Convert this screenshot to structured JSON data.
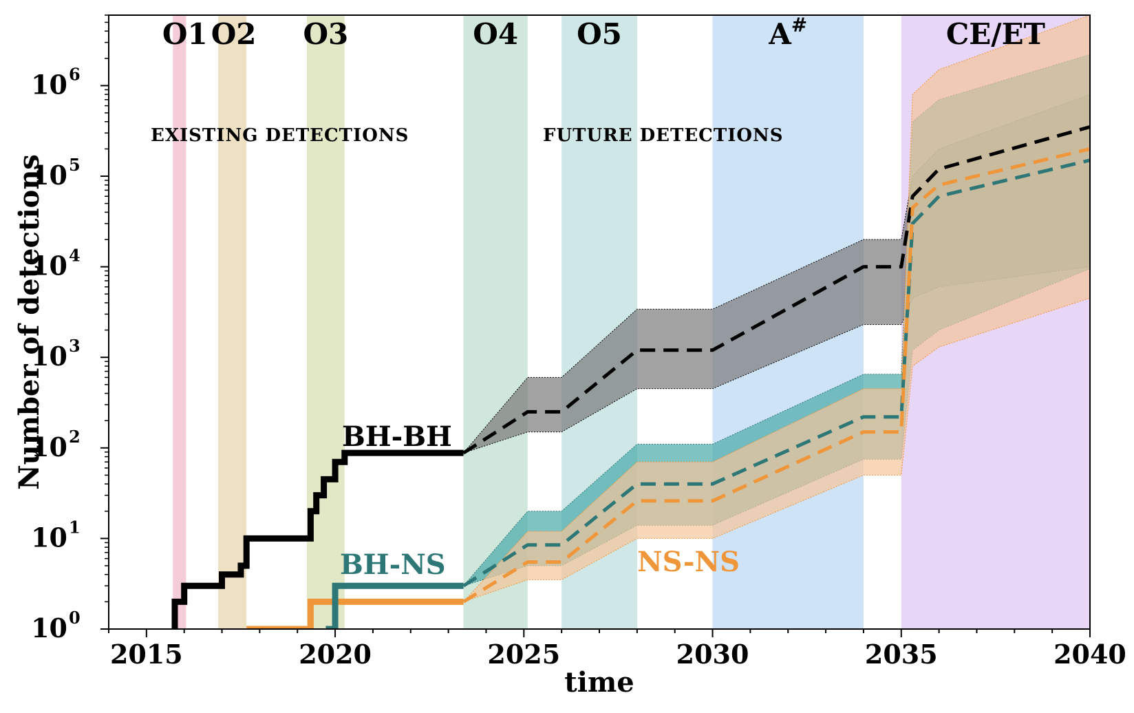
{
  "chart_data": {
    "type": "line",
    "title": "",
    "xlabel": "time",
    "ylabel": "Number of detections",
    "xlim": [
      2014,
      2040
    ],
    "ylim": [
      1,
      6000000
    ],
    "yscale": "log",
    "x_ticks": [
      2015,
      2020,
      2025,
      2030,
      2035,
      2040
    ],
    "x_tick_labels": [
      "2015",
      "2020",
      "2025",
      "2030",
      "2035",
      "2040"
    ],
    "y_ticks": [
      {
        "value": 1,
        "base": "10",
        "exp": "0"
      },
      {
        "value": 10,
        "base": "10",
        "exp": "1"
      },
      {
        "value": 100,
        "base": "10",
        "exp": "2"
      },
      {
        "value": 1000,
        "base": "10",
        "exp": "3"
      },
      {
        "value": 10000,
        "base": "10",
        "exp": "4"
      },
      {
        "value": 100000,
        "base": "10",
        "exp": "5"
      },
      {
        "value": 1000000,
        "base": "10",
        "exp": "6"
      }
    ],
    "observing_runs": [
      {
        "name": "O1",
        "sup": "",
        "start": 2015.7,
        "end": 2016.05,
        "color": "#f4cad6"
      },
      {
        "name": "O2",
        "sup": "",
        "start": 2016.9,
        "end": 2017.65,
        "color": "#eddec0"
      },
      {
        "name": "O3",
        "sup": "",
        "start": 2019.25,
        "end": 2020.25,
        "color": "#e0e6c2"
      },
      {
        "name": "O4",
        "sup": "",
        "start": 2023.4,
        "end": 2025.1,
        "color": "#cde7d9"
      },
      {
        "name": "O5",
        "sup": "",
        "start": 2026.0,
        "end": 2028.0,
        "color": "#cce6e6"
      },
      {
        "name": "A",
        "sup": "#",
        "start": 2030.0,
        "end": 2034.0,
        "color": "#cce2f7"
      },
      {
        "name": "CE/ET",
        "sup": "",
        "start": 2035.0,
        "end": 2040.0,
        "color": "#e7d4f7"
      }
    ],
    "region_labels": [
      "EXISTING DETECTIONS",
      "FUTURE DETECTIONS"
    ],
    "series": [
      {
        "name": "BH-BH",
        "color": "#000000",
        "band_color": "#7a7a7a",
        "observed": [
          [
            2015.7,
            1
          ],
          [
            2015.75,
            2
          ],
          [
            2016.0,
            3
          ],
          [
            2016.9,
            3
          ],
          [
            2017.0,
            4
          ],
          [
            2017.5,
            5
          ],
          [
            2017.65,
            10
          ],
          [
            2019.25,
            10
          ],
          [
            2019.35,
            20
          ],
          [
            2019.5,
            30
          ],
          [
            2019.7,
            45
          ],
          [
            2020.0,
            70
          ],
          [
            2020.25,
            88
          ],
          [
            2023.4,
            88
          ]
        ],
        "projection": [
          [
            2023.4,
            88
          ],
          [
            2025.1,
            250
          ],
          [
            2026.0,
            250
          ],
          [
            2028.0,
            1200
          ],
          [
            2030.0,
            1200
          ],
          [
            2034.0,
            10000
          ],
          [
            2035.0,
            10000
          ],
          [
            2035.3,
            60000
          ],
          [
            2036.0,
            120000
          ],
          [
            2040.0,
            350000
          ]
        ],
        "band": [
          [
            2023.4,
            88,
            88
          ],
          [
            2025.1,
            150,
            600
          ],
          [
            2026.0,
            150,
            600
          ],
          [
            2028.0,
            450,
            3400
          ],
          [
            2030.0,
            450,
            3400
          ],
          [
            2034.0,
            2300,
            20000
          ],
          [
            2035.0,
            2300,
            20000
          ],
          [
            2035.3,
            4500,
            100000
          ],
          [
            2036.0,
            6000,
            200000
          ],
          [
            2040.0,
            10000,
            800000
          ]
        ]
      },
      {
        "name": "BH-NS",
        "color": "#2e7777",
        "band_color": "#48aaaa",
        "observed": [
          [
            2019.75,
            1
          ],
          [
            2020.0,
            3
          ],
          [
            2023.4,
            3
          ]
        ],
        "projection": [
          [
            2023.4,
            3
          ],
          [
            2025.1,
            8.5
          ],
          [
            2026.0,
            8.5
          ],
          [
            2028.0,
            40
          ],
          [
            2030.0,
            40
          ],
          [
            2034.0,
            220
          ],
          [
            2035.0,
            220
          ],
          [
            2035.3,
            30000
          ],
          [
            2036.0,
            60000
          ],
          [
            2040.0,
            150000
          ]
        ],
        "band": [
          [
            2023.4,
            3,
            3
          ],
          [
            2025.1,
            5,
            20
          ],
          [
            2026.0,
            5,
            20
          ],
          [
            2028.0,
            14,
            110
          ],
          [
            2030.0,
            14,
            110
          ],
          [
            2034.0,
            75,
            650
          ],
          [
            2035.0,
            75,
            650
          ],
          [
            2035.3,
            1200,
            400000
          ],
          [
            2036.0,
            2000,
            700000
          ],
          [
            2040.0,
            9500,
            2200000
          ]
        ]
      },
      {
        "name": "NS-NS",
        "color": "#f0963a",
        "band_color": "#f5c59a",
        "observed": [
          [
            2017.65,
            1
          ],
          [
            2019.3,
            1
          ],
          [
            2019.35,
            2
          ],
          [
            2023.4,
            2
          ]
        ],
        "projection": [
          [
            2023.4,
            2
          ],
          [
            2025.1,
            5.5
          ],
          [
            2026.0,
            5.5
          ],
          [
            2028.0,
            26
          ],
          [
            2030.0,
            26
          ],
          [
            2034.0,
            150
          ],
          [
            2035.0,
            150
          ],
          [
            2035.3,
            45000
          ],
          [
            2036.0,
            80000
          ],
          [
            2040.0,
            200000
          ]
        ],
        "band": [
          [
            2023.4,
            2,
            2
          ],
          [
            2025.1,
            3.5,
            12
          ],
          [
            2026.0,
            3.5,
            12
          ],
          [
            2028.0,
            10,
            70
          ],
          [
            2030.0,
            10,
            70
          ],
          [
            2034.0,
            50,
            450
          ],
          [
            2035.0,
            50,
            450
          ],
          [
            2035.3,
            800,
            800000
          ],
          [
            2036.0,
            1300,
            1500000
          ],
          [
            2040.0,
            4500,
            6000000
          ]
        ]
      }
    ]
  }
}
